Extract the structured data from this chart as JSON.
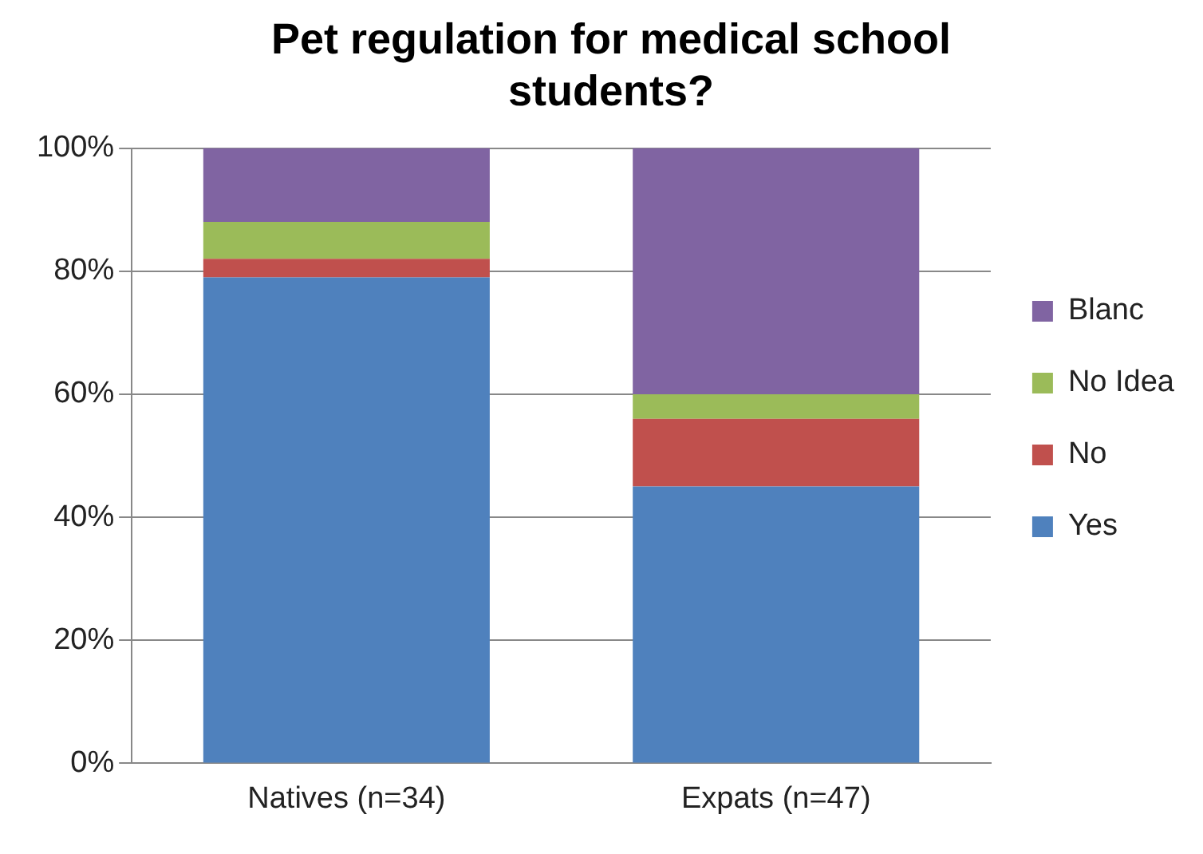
{
  "chart_data": {
    "type": "bar",
    "title": "Pet regulation for medical school students?",
    "categories": [
      "Natives (n=34)",
      "Expats (n=47)"
    ],
    "stacked": true,
    "series": [
      {
        "name": "Yes",
        "color": "#4f81bd",
        "values": [
          79,
          45
        ]
      },
      {
        "name": "No",
        "color": "#c0504d",
        "values": [
          3,
          11
        ]
      },
      {
        "name": "No Idea",
        "color": "#9bbb59",
        "values": [
          6,
          4
        ]
      },
      {
        "name": "Blanc",
        "color": "#8064a2",
        "values": [
          12,
          40
        ]
      }
    ],
    "ylim": [
      0,
      100
    ],
    "yticks": [
      {
        "value": 0,
        "label": "0%"
      },
      {
        "value": 20,
        "label": "20%"
      },
      {
        "value": 40,
        "label": "40%"
      },
      {
        "value": 60,
        "label": "60%"
      },
      {
        "value": 80,
        "label": "80%"
      },
      {
        "value": 100,
        "label": "100%"
      }
    ],
    "grid": "y",
    "legend": "right"
  }
}
